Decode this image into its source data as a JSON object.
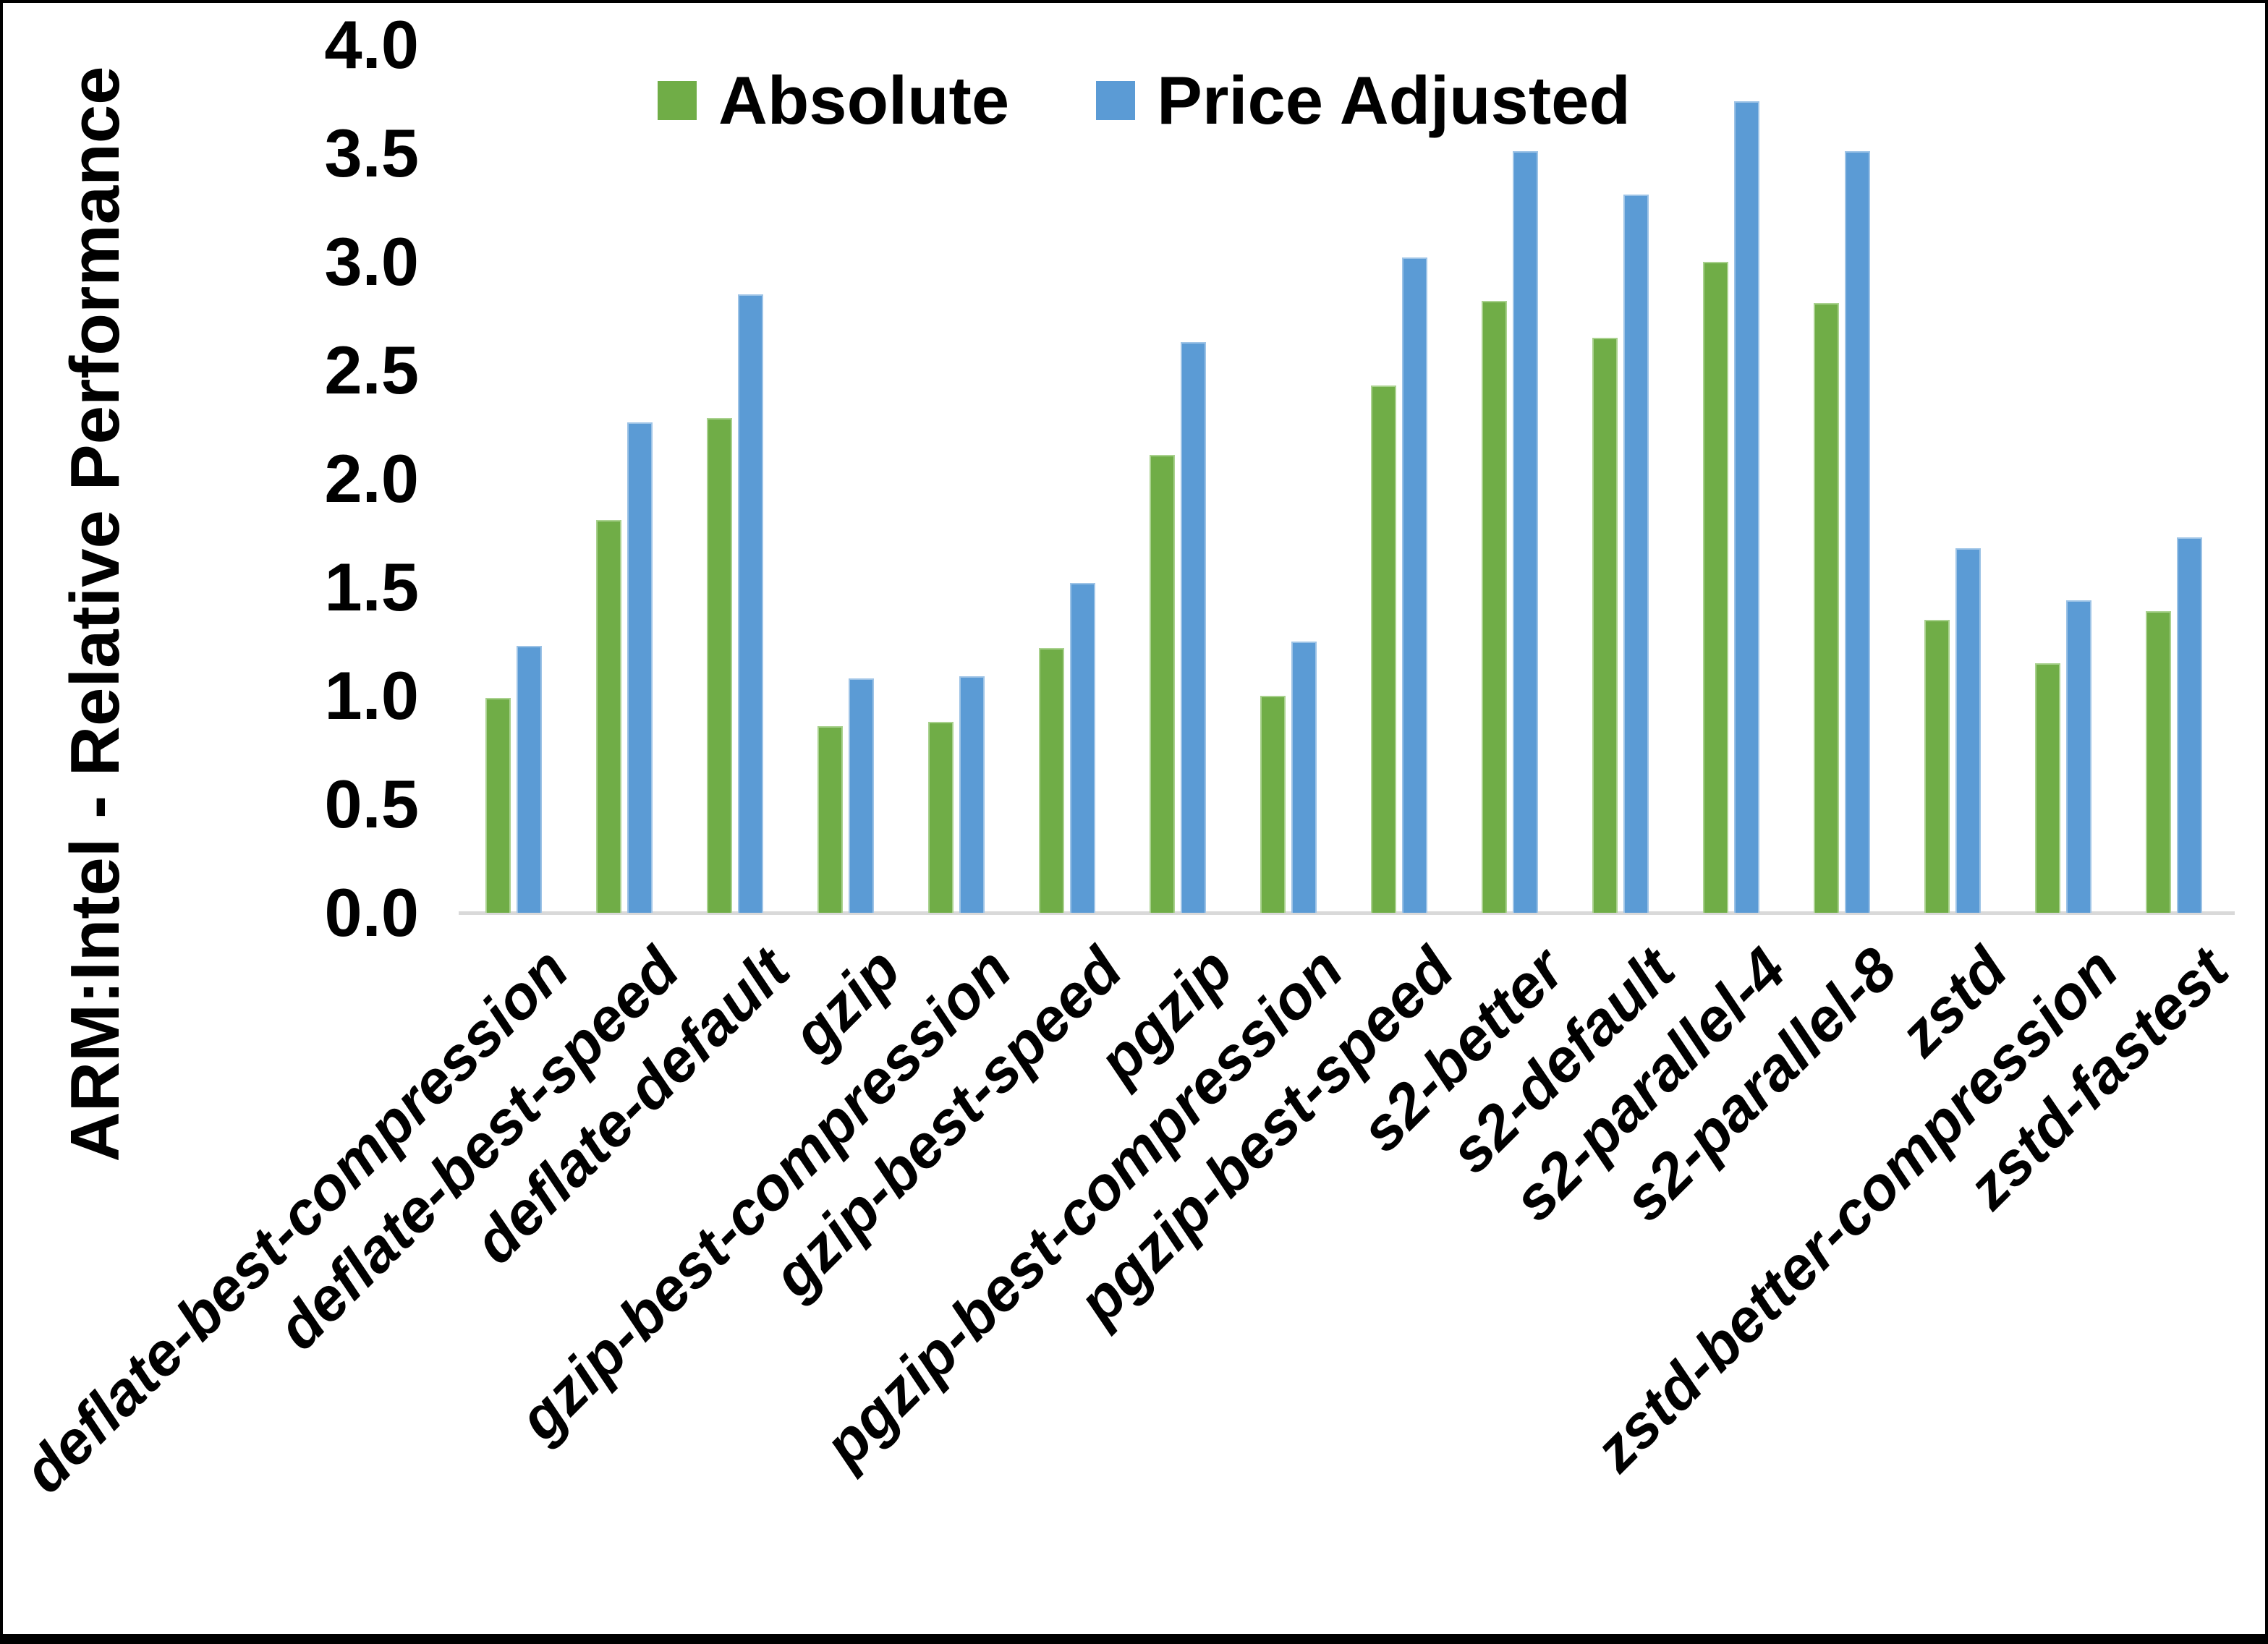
{
  "chart_data": {
    "type": "bar",
    "title": "",
    "xlabel": "",
    "ylabel": "ARM:Intel - Relative Performance",
    "ylim": [
      0.0,
      4.0
    ],
    "ytick_step": 0.5,
    "grid": false,
    "legend_position": "top-center",
    "categories": [
      "deflate-best-compression",
      "deflate-best-speed",
      "deflate-default",
      "gzip",
      "gzip-best-compression",
      "gzip-best-speed",
      "pgzip",
      "pgzip-best-compression",
      "pgzip-best-speed",
      "s2-better",
      "s2-default",
      "s2-parallel-4",
      "s2-parallel-8",
      "zstd",
      "zstd-better-compression",
      "zstd-fastest"
    ],
    "series": [
      {
        "name": "Absolute",
        "color": "#70AD47",
        "values": [
          0.99,
          1.81,
          2.28,
          0.86,
          0.88,
          1.22,
          2.11,
          1.0,
          2.43,
          2.82,
          2.65,
          3.0,
          2.81,
          1.35,
          1.15,
          1.39
        ]
      },
      {
        "name": "Price Adjusted",
        "color": "#5B9BD5",
        "values": [
          1.23,
          2.26,
          2.85,
          1.08,
          1.09,
          1.52,
          2.63,
          1.25,
          3.02,
          3.51,
          3.31,
          3.74,
          3.51,
          1.68,
          1.44,
          1.73
        ]
      }
    ]
  },
  "axis": {
    "tick_labels": [
      "0.0",
      "0.5",
      "1.0",
      "1.5",
      "2.0",
      "2.5",
      "3.0",
      "3.5",
      "4.0"
    ],
    "line_color": "#D9D9D9"
  }
}
